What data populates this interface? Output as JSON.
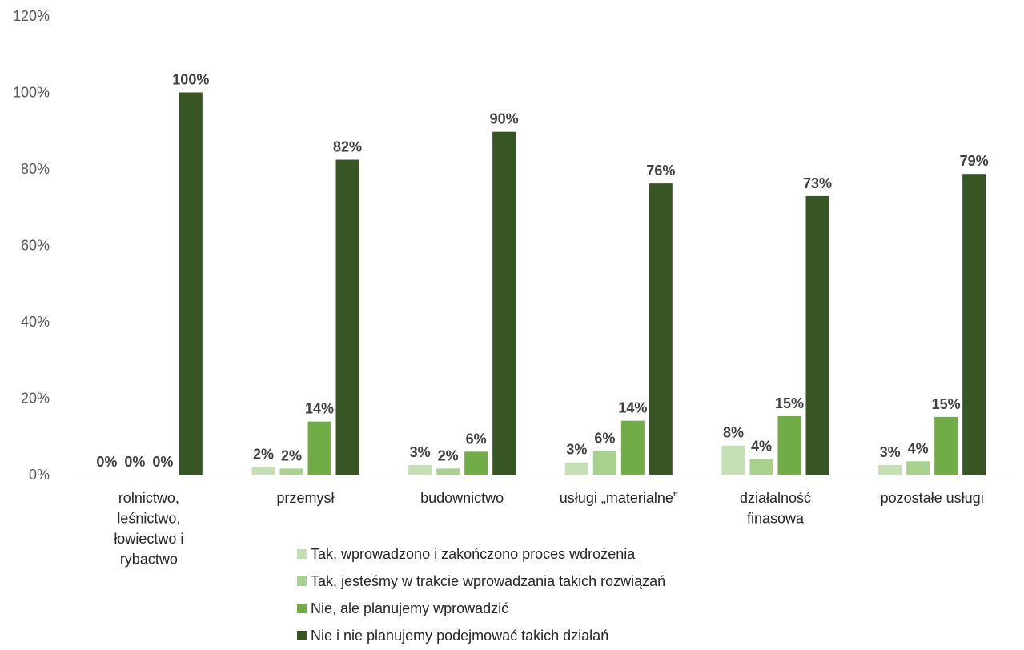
{
  "chart_data": {
    "type": "bar",
    "categories": [
      [
        "rolnictwo,",
        "leśnictwo,",
        "łowiectwo i",
        "rybactwo"
      ],
      [
        "przemysł"
      ],
      [
        "budownictwo"
      ],
      [
        "usługi „materialne”"
      ],
      [
        "działalność",
        "finasowa"
      ],
      [
        "pozostałe usługi"
      ]
    ],
    "series": [
      {
        "name": "Tak, wprowadzono i zakończono proces wdrożenia",
        "color": "#c5dfb5",
        "values": [
          0,
          2,
          2.5,
          3.2,
          7.6,
          2.5
        ],
        "labels": [
          "0%",
          "2%",
          "3%",
          "3%",
          "8%",
          "3%"
        ]
      },
      {
        "name": "Tak, jesteśmy w trakcie wprowadzania takich rozwiązań",
        "color": "#a9d18e",
        "values": [
          0,
          1.6,
          1.6,
          6.2,
          4.1,
          3.5
        ],
        "labels": [
          "0%",
          "2%",
          "2%",
          "6%",
          "4%",
          "4%"
        ]
      },
      {
        "name": "Nie, ale planujemy wprowadzić",
        "color": "#70ad47",
        "values": [
          0,
          13.9,
          6,
          14.1,
          15.3,
          15.1
        ],
        "labels": [
          "0%",
          "14%",
          "6%",
          "14%",
          "15%",
          "15%"
        ]
      },
      {
        "name": "Nie i nie planujemy podejmować takich działań",
        "color": "#375623",
        "values": [
          100,
          82.4,
          89.7,
          76.2,
          72.9,
          78.7
        ],
        "labels": [
          "100%",
          "82%",
          "90%",
          "76%",
          "73%",
          "79%"
        ]
      }
    ],
    "y_ticks": [
      "0%",
      "20%",
      "40%",
      "60%",
      "80%",
      "100%",
      "120%"
    ],
    "ylim": [
      0,
      120
    ],
    "grid": false,
    "legend_position": "bottom"
  }
}
